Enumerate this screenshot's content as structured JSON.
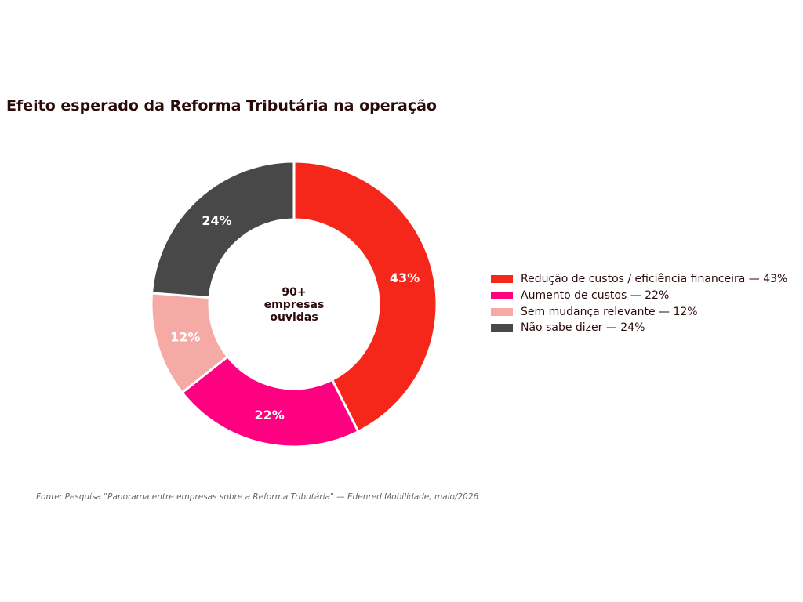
{
  "chart_data": {
    "type": "pie",
    "title": "Efeito esperado da Reforma Tributária na operação",
    "center_label": [
      "90+",
      "empresas",
      "ouvidas"
    ],
    "labels": [
      "Redução de custos / eficiência financeira",
      "Aumento de custos",
      "Sem mudança relevante",
      "Não sabe dizer"
    ],
    "values": [
      43,
      22,
      12,
      24
    ],
    "value_labels": [
      "43%",
      "22%",
      "12%",
      "24%"
    ],
    "colors": [
      "#f5261a",
      "#ff0080",
      "#f5aaa6",
      "#484848"
    ],
    "legend": {
      "position": "right",
      "entries": [
        "Redução de custos / eficiência financeira — 43%",
        "Aumento de custos — 22%",
        "Sem mudança relevante — 12%",
        "Não sabe dizer — 24%"
      ]
    },
    "source": "Fonte: Pesquisa \"Panorama entre empresas sobre a Reforma Tributária\" — Edenred Mobilidade, maio/2026"
  }
}
